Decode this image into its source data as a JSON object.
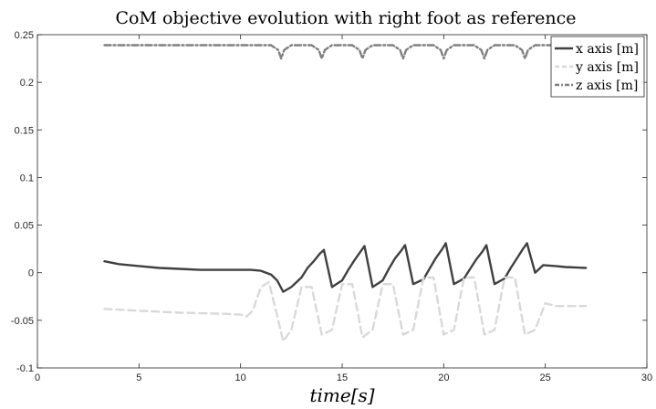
{
  "chart_data": {
    "type": "line",
    "title": "CoM objective evolution with right foot as reference",
    "xlabel": "time[s]",
    "ylabel": "",
    "xlim": [
      0,
      30
    ],
    "ylim": [
      -0.1,
      0.25
    ],
    "xticks": [
      0,
      5,
      10,
      15,
      20,
      25,
      30
    ],
    "yticks": [
      -0.1,
      -0.05,
      0,
      0.05,
      0.1,
      0.15,
      0.2,
      0.25
    ],
    "xtick_labels": [
      "0",
      "5",
      "10",
      "15",
      "20",
      "25",
      "30"
    ],
    "ytick_labels": [
      "-0.1",
      "-0.05",
      "0",
      "0.05",
      "0.1",
      "0.15",
      "0.2",
      "0.25"
    ],
    "grid": false,
    "legend_position": "top-right",
    "series": [
      {
        "name": "x axis [m]",
        "color": "#404040",
        "dash": "solid",
        "x": [
          3.3,
          4,
          5,
          6,
          7,
          8,
          9,
          10,
          10.5,
          11,
          11.5,
          11.8,
          12.1,
          12.5,
          13,
          13.3,
          13.6,
          13.9,
          14.1,
          14.5,
          15,
          15.3,
          15.6,
          15.9,
          16.1,
          16.5,
          17,
          17.3,
          17.6,
          17.9,
          18.1,
          18.5,
          19,
          19.3,
          19.6,
          19.9,
          20.1,
          20.5,
          21,
          21.3,
          21.6,
          21.9,
          22.1,
          22.5,
          23,
          23.3,
          23.6,
          23.9,
          24.1,
          24.5,
          24.9,
          25.5,
          26,
          27
        ],
        "y": [
          0.012,
          0.009,
          0.007,
          0.005,
          0.004,
          0.003,
          0.003,
          0.003,
          0.003,
          0.002,
          -0.002,
          -0.008,
          -0.02,
          -0.015,
          -0.005,
          0.005,
          0.012,
          0.02,
          0.024,
          -0.015,
          -0.008,
          0.003,
          0.013,
          0.022,
          0.028,
          -0.015,
          -0.008,
          0.004,
          0.015,
          0.023,
          0.029,
          -0.012,
          -0.007,
          0.004,
          0.015,
          0.024,
          0.031,
          -0.012,
          -0.006,
          0.004,
          0.014,
          0.022,
          0.029,
          -0.012,
          -0.006,
          0.005,
          0.015,
          0.025,
          0.031,
          0.0,
          0.008,
          0.007,
          0.006,
          0.005
        ]
      },
      {
        "name": "y axis [m]",
        "color": "#d9d9d9",
        "dash": "dashed",
        "x": [
          3.3,
          5,
          7,
          9,
          10,
          10.3,
          10.6,
          11,
          11.4,
          11.8,
          12.1,
          12.5,
          13,
          13.5,
          14,
          14.5,
          15,
          15.5,
          16,
          16.5,
          17,
          17.5,
          18,
          18.5,
          19,
          19.5,
          20,
          20.5,
          21,
          21.5,
          22,
          22.5,
          23,
          23.5,
          24,
          24.5,
          25,
          25.5,
          26,
          27
        ],
        "y": [
          -0.038,
          -0.04,
          -0.042,
          -0.043,
          -0.044,
          -0.046,
          -0.04,
          -0.015,
          -0.01,
          -0.045,
          -0.072,
          -0.06,
          -0.015,
          -0.015,
          -0.065,
          -0.06,
          -0.012,
          -0.012,
          -0.068,
          -0.06,
          -0.012,
          -0.012,
          -0.065,
          -0.06,
          -0.005,
          -0.005,
          -0.065,
          -0.06,
          -0.005,
          -0.005,
          -0.065,
          -0.06,
          -0.005,
          -0.005,
          -0.065,
          -0.06,
          -0.032,
          -0.035,
          -0.035,
          -0.035
        ]
      },
      {
        "name": "z axis [m]",
        "color": "#808080",
        "dash": "dashdot",
        "x": [
          3.3,
          11.5,
          11.85,
          12.0,
          12.15,
          12.5,
          13.5,
          13.85,
          14.0,
          14.15,
          14.5,
          15.5,
          15.85,
          16.0,
          16.15,
          16.5,
          17.5,
          17.85,
          18.0,
          18.15,
          18.5,
          19.5,
          19.85,
          20.0,
          20.15,
          20.5,
          21.5,
          21.85,
          22.0,
          22.15,
          22.5,
          23.5,
          23.85,
          24.0,
          24.15,
          24.5,
          27
        ],
        "y": [
          0.239,
          0.239,
          0.234,
          0.225,
          0.234,
          0.239,
          0.239,
          0.234,
          0.225,
          0.234,
          0.239,
          0.239,
          0.234,
          0.225,
          0.234,
          0.239,
          0.239,
          0.234,
          0.225,
          0.234,
          0.239,
          0.239,
          0.234,
          0.225,
          0.234,
          0.239,
          0.239,
          0.234,
          0.225,
          0.234,
          0.239,
          0.239,
          0.234,
          0.225,
          0.234,
          0.239,
          0.239
        ]
      }
    ]
  }
}
